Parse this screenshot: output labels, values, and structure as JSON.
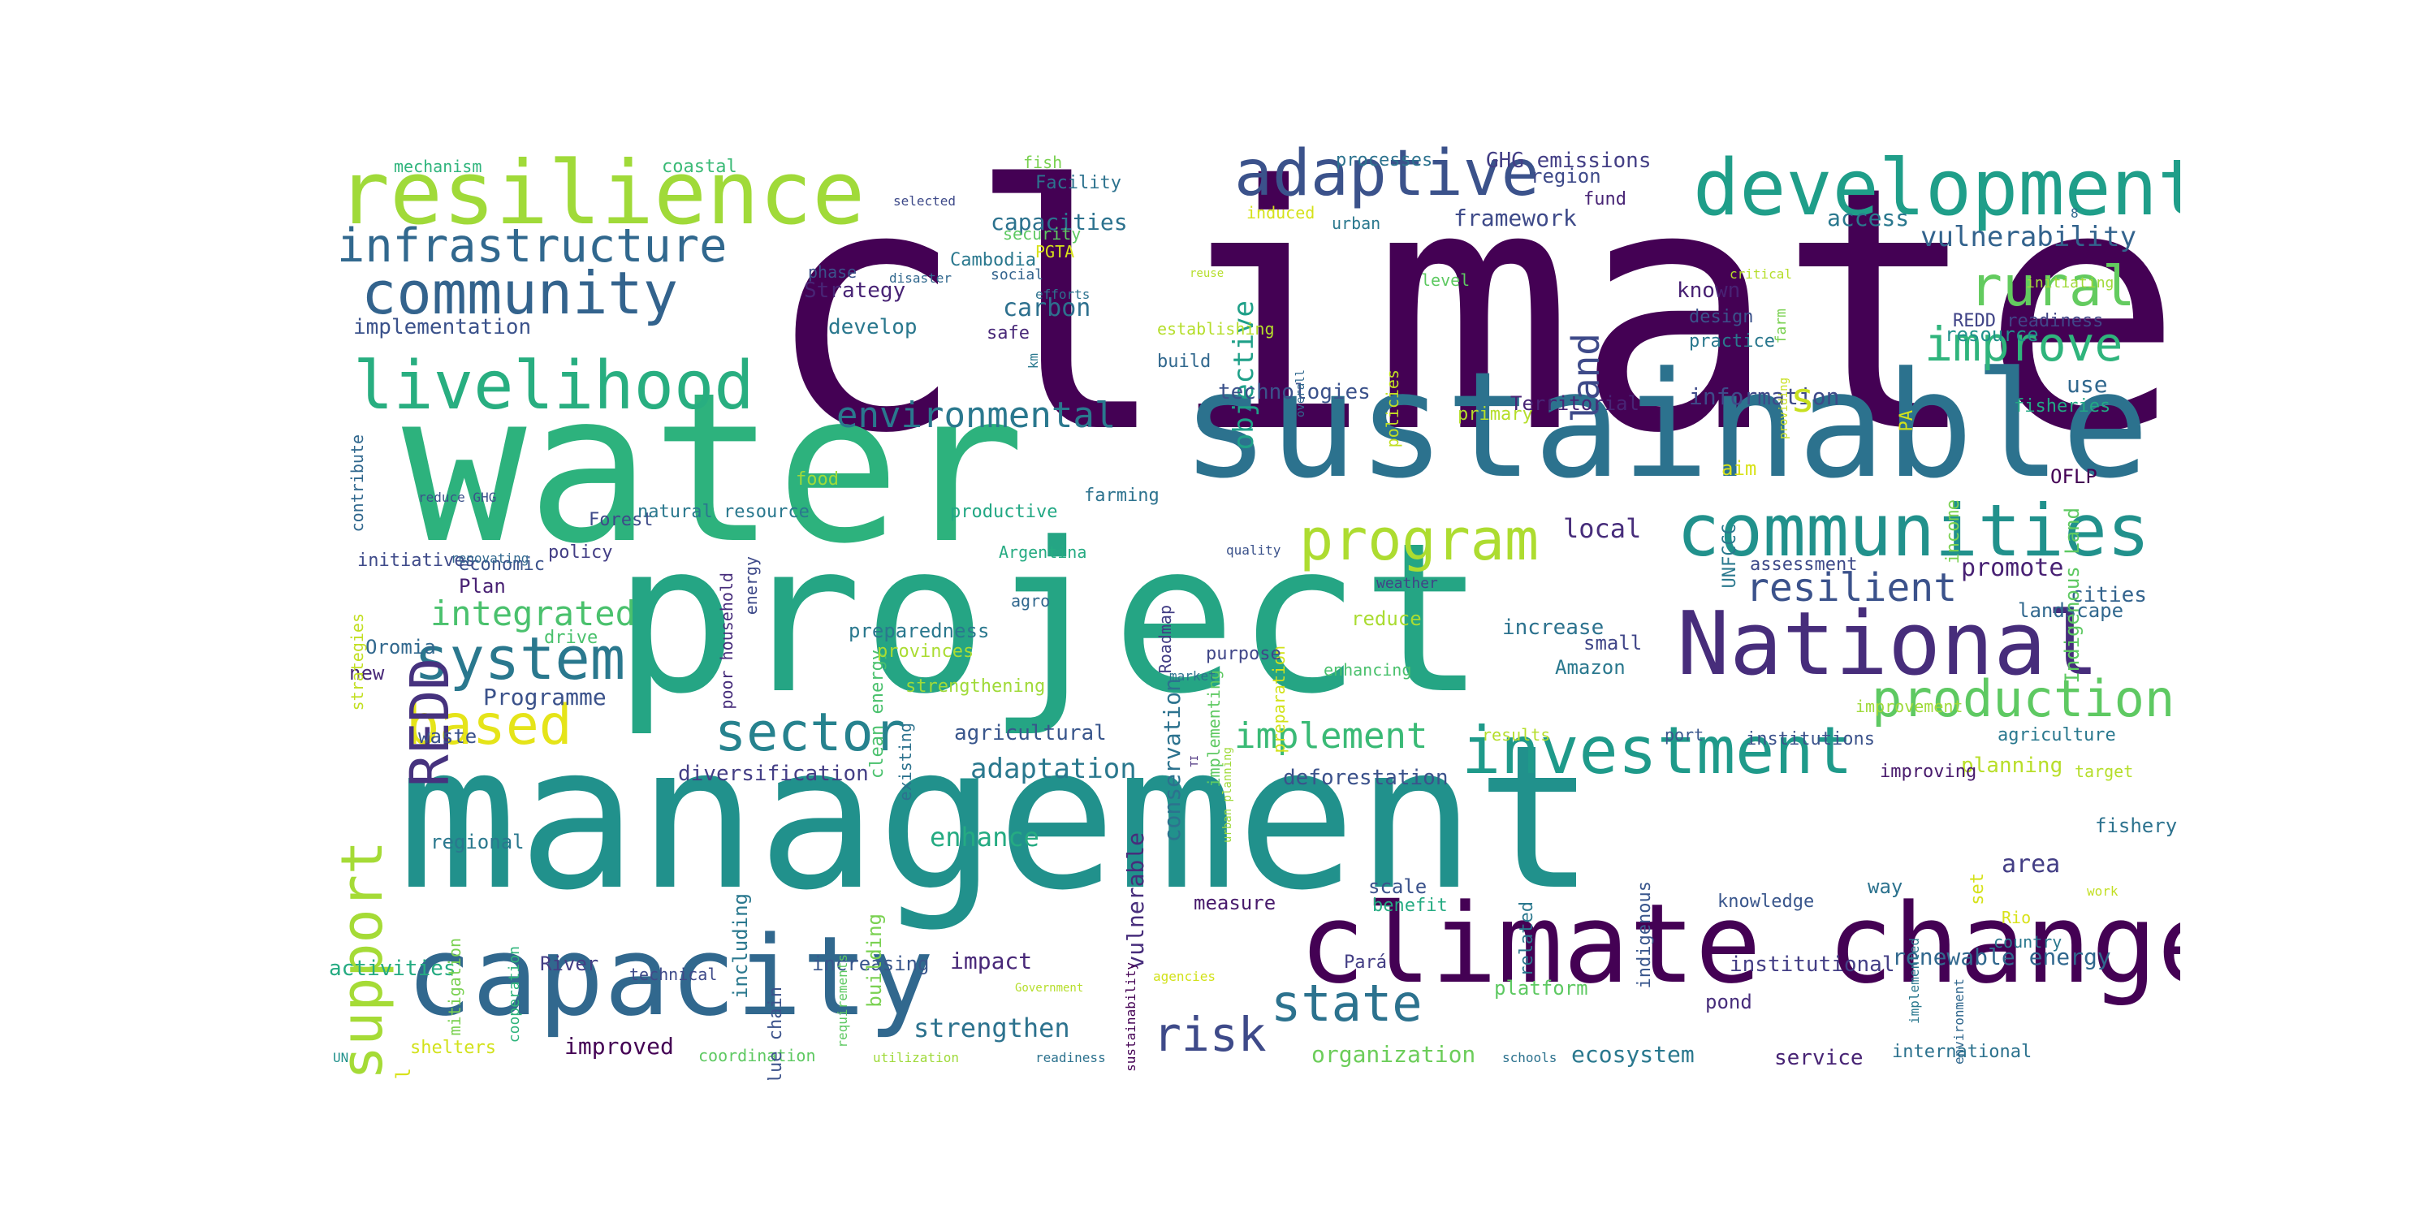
{
  "words": [
    {
      "text": "climate",
      "color": "#440154"
    },
    {
      "text": "water",
      "color": "#2db27d"
    },
    {
      "text": "management",
      "color": "#21918c"
    },
    {
      "text": "project",
      "color": "#25a584"
    },
    {
      "text": "sustainable",
      "color": "#2c728e"
    },
    {
      "text": "climate change",
      "color": "#440154"
    },
    {
      "text": "capacity",
      "color": "#31688e"
    },
    {
      "text": "resilience",
      "color": "#a0da39"
    },
    {
      "text": "development",
      "color": "#1f9e89"
    },
    {
      "text": "National",
      "color": "#472d7b"
    },
    {
      "text": "communities",
      "color": "#21918c"
    },
    {
      "text": "livelihood",
      "color": "#28ae80"
    },
    {
      "text": "community",
      "color": "#33638d"
    },
    {
      "text": "adaptive",
      "color": "#3b528b"
    },
    {
      "text": "infrastructure",
      "color": "#31688e"
    },
    {
      "text": "investment",
      "color": "#1f9a8a"
    },
    {
      "text": "program",
      "color": "#addc30"
    },
    {
      "text": "production",
      "color": "#5ec962"
    },
    {
      "text": "sector",
      "color": "#26828e"
    },
    {
      "text": "support",
      "color": "#a5db36"
    },
    {
      "text": "system",
      "color": "#2a788e"
    },
    {
      "text": "based",
      "color": "#e5e419"
    },
    {
      "text": "rural",
      "color": "#63cb5f"
    },
    {
      "text": "improve",
      "color": "#2fb47c"
    },
    {
      "text": "state",
      "color": "#2c728e"
    },
    {
      "text": "risk",
      "color": "#3e4a89"
    },
    {
      "text": "resilient",
      "color": "#3b528b"
    },
    {
      "text": "REDD",
      "color": "#46327e"
    },
    {
      "text": "environmental",
      "color": "#2a788e"
    },
    {
      "text": "integrated",
      "color": "#4ac16d"
    },
    {
      "text": "implement",
      "color": "#3aba76"
    },
    {
      "text": "land",
      "color": "#3e4a89"
    },
    {
      "text": "vulnerability",
      "color": "#33638d"
    },
    {
      "text": "adaptation",
      "color": "#2a788e"
    },
    {
      "text": "strengthen",
      "color": "#2c728e"
    },
    {
      "text": "enhance",
      "color": "#25ab82"
    },
    {
      "text": "Programme",
      "color": "#3b528b"
    },
    {
      "text": "renewable energy",
      "color": "#31688e"
    },
    {
      "text": "area",
      "color": "#433e85"
    },
    {
      "text": "local",
      "color": "#472d7b"
    },
    {
      "text": "promote",
      "color": "#482173"
    },
    {
      "text": "objective",
      "color": "#1fa088"
    },
    {
      "text": "technologies",
      "color": "#3b528b"
    },
    {
      "text": "information",
      "color": "#3e4a89"
    },
    {
      "text": "carbon",
      "color": "#2d708e"
    },
    {
      "text": "capacities",
      "color": "#2c728e"
    },
    {
      "text": "framework",
      "color": "#3e4a89"
    },
    {
      "text": "implementation",
      "color": "#3b528b"
    },
    {
      "text": "Strategy",
      "color": "#482475"
    },
    {
      "text": "develop",
      "color": "#2a788e"
    },
    {
      "text": "GHG emissions",
      "color": "#433e85"
    },
    {
      "text": "conservation",
      "color": "#2c728e"
    },
    {
      "text": "agricultural",
      "color": "#39568c"
    },
    {
      "text": "diversification",
      "color": "#433e85"
    },
    {
      "text": "deforestation",
      "color": "#3b528b"
    },
    {
      "text": "organization",
      "color": "#6ccd5a"
    },
    {
      "text": "ecosystem",
      "color": "#2a788e"
    },
    {
      "text": "institutional",
      "color": "#433e85"
    },
    {
      "text": "improved",
      "color": "#440154"
    },
    {
      "text": "impact",
      "color": "#482878"
    },
    {
      "text": "vulnerable",
      "color": "#472d7b"
    },
    {
      "text": "activities",
      "color": "#25ab82"
    },
    {
      "text": "measure",
      "color": "#481a6c"
    },
    {
      "text": "scale",
      "color": "#3b528b"
    },
    {
      "text": "service",
      "color": "#482475"
    },
    {
      "text": "planning",
      "color": "#b8de29"
    },
    {
      "text": "increase",
      "color": "#2c728e"
    },
    {
      "text": "small",
      "color": "#404688"
    },
    {
      "text": "Amazon",
      "color": "#2a788e"
    },
    {
      "text": "cities",
      "color": "#33638d"
    },
    {
      "text": "landscape",
      "color": "#31688e"
    },
    {
      "text": "Territorial",
      "color": "#482475"
    },
    {
      "text": "use",
      "color": "#31688e"
    },
    {
      "text": "s",
      "color": "#c8e020"
    },
    {
      "text": "access",
      "color": "#2a788e"
    },
    {
      "text": "region",
      "color": "#3e4a89"
    },
    {
      "text": "fund",
      "color": "#482475"
    },
    {
      "text": "known",
      "color": "#482173"
    },
    {
      "text": "design",
      "color": "#3b528b"
    },
    {
      "text": "practice",
      "color": "#2a788e"
    },
    {
      "text": "resource",
      "color": "#21918c"
    },
    {
      "text": "REDD readiness",
      "color": "#414487"
    },
    {
      "text": "fisheries",
      "color": "#22a884"
    },
    {
      "text": "Indigenous Land",
      "color": "#5ec962"
    },
    {
      "text": "income",
      "color": "#7ad151"
    },
    {
      "text": "UNFCCC",
      "color": "#2a788e"
    },
    {
      "text": "PA",
      "color": "#d2e21b"
    },
    {
      "text": "aim",
      "color": "#d8e219"
    },
    {
      "text": "OFLP",
      "color": "#440154"
    },
    {
      "text": "assessment",
      "color": "#3e4a89"
    },
    {
      "text": "weather",
      "color": "#414487"
    },
    {
      "text": "preparation",
      "color": "#d2e21b"
    },
    {
      "text": "implementing",
      "color": "#5ec962"
    },
    {
      "text": "enhancing",
      "color": "#4ac16d"
    },
    {
      "text": "improvement",
      "color": "#9fda3a"
    },
    {
      "text": "results",
      "color": "#b5de2b"
    },
    {
      "text": "port",
      "color": "#39568c"
    },
    {
      "text": "institutions",
      "color": "#3b528b"
    },
    {
      "text": "agriculture",
      "color": "#2a788e"
    },
    {
      "text": "improving",
      "color": "#481a6c"
    },
    {
      "text": "target",
      "color": "#b5de2b"
    },
    {
      "text": "fishery",
      "color": "#2c728e"
    },
    {
      "text": "way",
      "color": "#2c728e"
    },
    {
      "text": "set",
      "color": "#d5e21a"
    },
    {
      "text": "knowledge",
      "color": "#39568c"
    },
    {
      "text": "Rio",
      "color": "#d8e219"
    },
    {
      "text": "country",
      "color": "#2a788e"
    },
    {
      "text": "work",
      "color": "#c2df23"
    },
    {
      "text": "pond",
      "color": "#472d7b"
    },
    {
      "text": "international",
      "color": "#2c728e"
    },
    {
      "text": "schools",
      "color": "#2c728e"
    },
    {
      "text": "platform",
      "color": "#5ec962"
    },
    {
      "text": "related",
      "color": "#2a788e"
    },
    {
      "text": "indigenous",
      "color": "#39568c"
    },
    {
      "text": "benefit",
      "color": "#25ab82"
    },
    {
      "text": "Pará",
      "color": "#433e85"
    },
    {
      "text": "agencies",
      "color": "#d2e21b"
    },
    {
      "text": "Government",
      "color": "#b5de2b"
    },
    {
      "text": "readiness",
      "color": "#2c728e"
    },
    {
      "text": "utilization",
      "color": "#9fda3a"
    },
    {
      "text": "coordination",
      "color": "#5ec962"
    },
    {
      "text": "shelters",
      "color": "#d2e21b"
    },
    {
      "text": "Goal",
      "color": "#d8e219"
    },
    {
      "text": "UN",
      "color": "#21918c"
    },
    {
      "text": "technical",
      "color": "#3e4a89"
    },
    {
      "text": "increasing",
      "color": "#39568c"
    },
    {
      "text": "value chain",
      "color": "#3b528b"
    },
    {
      "text": "building",
      "color": "#7ad151"
    },
    {
      "text": "including",
      "color": "#2a788e"
    },
    {
      "text": "River",
      "color": "#433e85"
    },
    {
      "text": "regional",
      "color": "#2a788e"
    },
    {
      "text": "mitigation",
      "color": "#7ad151"
    },
    {
      "text": "cooperation",
      "color": "#2fb47c"
    },
    {
      "text": "requirements",
      "color": "#5ec962"
    },
    {
      "text": "sustainability",
      "color": "#440154"
    },
    {
      "text": "environment",
      "color": "#31688e"
    },
    {
      "text": "implemented",
      "color": "#2a788e"
    },
    {
      "text": "waste",
      "color": "#3b528b"
    },
    {
      "text": "new",
      "color": "#482878"
    },
    {
      "text": "Oromia",
      "color": "#31688e"
    },
    {
      "text": "drive",
      "color": "#4ac16d"
    },
    {
      "text": "Plan",
      "color": "#482173"
    },
    {
      "text": "economic",
      "color": "#3b528b"
    },
    {
      "text": "strategies",
      "color": "#c2df23"
    },
    {
      "text": "Forest",
      "color": "#3e4a89"
    },
    {
      "text": "poor household",
      "color": "#472d7b"
    },
    {
      "text": "energy",
      "color": "#3e4a89"
    },
    {
      "text": "food",
      "color": "#a0da39"
    },
    {
      "text": "clean energy",
      "color": "#4ac16d"
    },
    {
      "text": "productive",
      "color": "#22a884"
    },
    {
      "text": "farming",
      "color": "#2c728e"
    },
    {
      "text": "Argentina",
      "color": "#25ab82"
    },
    {
      "text": "agro",
      "color": "#31688e"
    },
    {
      "text": "Roadmap",
      "color": "#433e85"
    },
    {
      "text": "quality",
      "color": "#3b528b"
    },
    {
      "text": "preparedness",
      "color": "#2a788e"
    },
    {
      "text": "provinces",
      "color": "#aadc32"
    },
    {
      "text": "market",
      "color": "#2c728e"
    },
    {
      "text": "strengthening",
      "color": "#a0da39"
    },
    {
      "text": "purpose",
      "color": "#404688"
    },
    {
      "text": "existing",
      "color": "#2c728e"
    },
    {
      "text": "TI",
      "color": "#472d7b"
    },
    {
      "text": "urban planning",
      "color": "#9fda3a"
    },
    {
      "text": "reduce",
      "color": "#aadc32"
    },
    {
      "text": "contribute",
      "color": "#31688e"
    },
    {
      "text": "initiatives",
      "color": "#3e4a89"
    },
    {
      "text": "renovating",
      "color": "#31688e"
    },
    {
      "text": "policy",
      "color": "#433e85"
    },
    {
      "text": "reduce GHG",
      "color": "#3b528b"
    },
    {
      "text": "natural resource",
      "color": "#2a788e"
    },
    {
      "text": "mechanism",
      "color": "#2fb47c"
    },
    {
      "text": "coastal",
      "color": "#3aba76"
    },
    {
      "text": "fish",
      "color": "#7ad151"
    },
    {
      "text": "Facility",
      "color": "#2c728e"
    },
    {
      "text": "processes",
      "color": "#2c728e"
    },
    {
      "text": "selected",
      "color": "#3e4a89"
    },
    {
      "text": "induced",
      "color": "#d5e21a"
    },
    {
      "text": "security",
      "color": "#5ec962"
    },
    {
      "text": "PGTA",
      "color": "#d8e219"
    },
    {
      "text": "phase",
      "color": "#3b528b"
    },
    {
      "text": "Cambodia",
      "color": "#2a788e"
    },
    {
      "text": "disaster",
      "color": "#31688e"
    },
    {
      "text": "social",
      "color": "#33638d"
    },
    {
      "text": "efforts",
      "color": "#2c728e"
    },
    {
      "text": "km",
      "color": "#2a788e"
    },
    {
      "text": "safe",
      "color": "#482878"
    },
    {
      "text": "reuse",
      "color": "#b5de2b"
    },
    {
      "text": "establishing",
      "color": "#b5de2b"
    },
    {
      "text": "build",
      "color": "#31688e"
    },
    {
      "text": "overall",
      "color": "#31688e"
    },
    {
      "text": "policies",
      "color": "#c2df23"
    },
    {
      "text": "urban",
      "color": "#2a788e"
    },
    {
      "text": "level",
      "color": "#5ec962"
    },
    {
      "text": "critical",
      "color": "#b5de2b"
    },
    {
      "text": "farm",
      "color": "#7ad151"
    },
    {
      "text": "providing",
      "color": "#c8e020"
    },
    {
      "text": "primary",
      "color": "#b5de2b"
    },
    {
      "text": "initiating",
      "color": "#a0da39"
    },
    {
      "text": "8",
      "color": "#31688e"
    }
  ]
}
